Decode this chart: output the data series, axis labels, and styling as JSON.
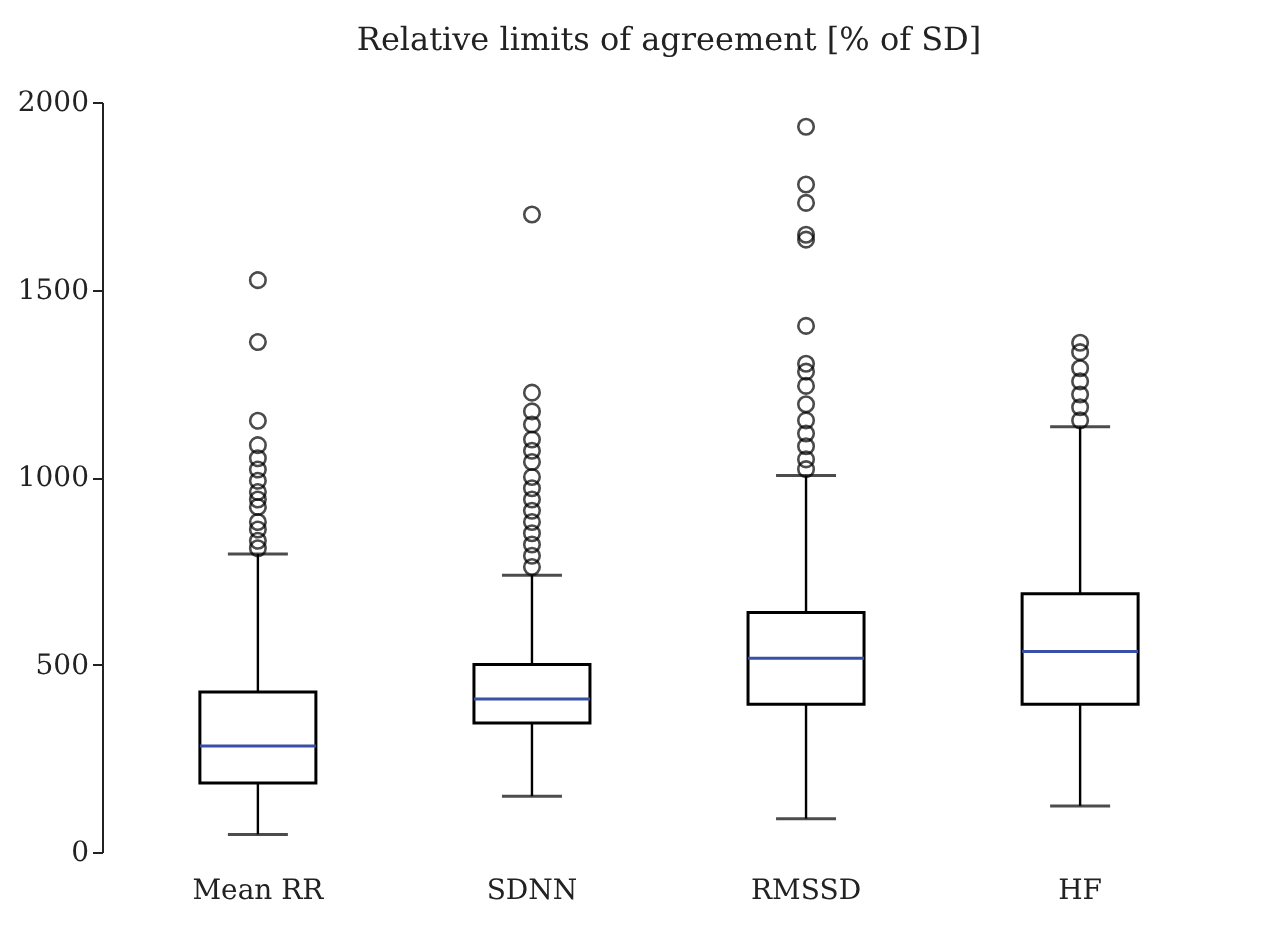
{
  "chart_data": {
    "type": "box",
    "title": "Relative limits of agreement [% of SD]",
    "categories": [
      "Mean RR",
      "SDNN",
      "RMSSD",
      "HF"
    ],
    "series": [
      {
        "color": "#3a4fa8",
        "boxes": [
          {
            "low": 47,
            "q1": 184,
            "median": 283,
            "q3": 427,
            "high": 795,
            "outliers": [
              1525,
              1360,
              1150,
              1085,
              1050,
              1020,
              990,
              960,
              940,
              920,
              880,
              860,
              830,
              810
            ]
          },
          {
            "low": 149,
            "q1": 344,
            "median": 408,
            "q3": 500,
            "high": 738,
            "outliers": [
              1700,
              1225,
              1175,
              1140,
              1100,
              1070,
              1040,
              1000,
              970,
              940,
              910,
              880,
              850,
              820,
              790,
              760
            ]
          },
          {
            "low": 89,
            "q1": 394,
            "median": 517,
            "q3": 639,
            "high": 1004,
            "outliers": [
              1934,
              1780,
              1731,
              1646,
              1633,
              1403,
              1302,
              1281,
              1243,
              1194,
              1151,
              1116,
              1082,
              1047,
              1021
            ]
          },
          {
            "low": 123,
            "q1": 394,
            "median": 535,
            "q3": 689,
            "high": 1134,
            "outliers": [
              1358,
              1333,
              1290,
              1255,
              1220,
              1186,
              1151
            ]
          }
        ]
      }
    ],
    "ylim": [
      0,
      2000
    ],
    "yticks": [
      0,
      500,
      1000,
      1500,
      2000
    ],
    "grid": false
  }
}
